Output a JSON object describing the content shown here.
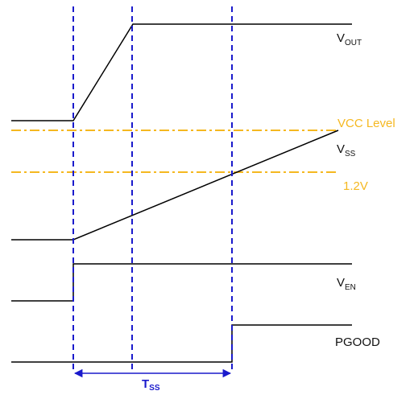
{
  "colors": {
    "signal": "#000000",
    "level_line": "#F5B820",
    "marker": "#1A1ACC"
  },
  "signals": {
    "vout": {
      "main": "V",
      "sub": "OUT"
    },
    "vss": {
      "main": "V",
      "sub": "SS"
    },
    "ven": {
      "main": "V",
      "sub": "EN"
    },
    "pgood": {
      "label": "PGOOD"
    }
  },
  "levels": {
    "vcc": {
      "label": "VCC Level"
    },
    "threshold": {
      "label": "1.2V"
    }
  },
  "interval": {
    "main": "T",
    "sub": "SS"
  }
}
